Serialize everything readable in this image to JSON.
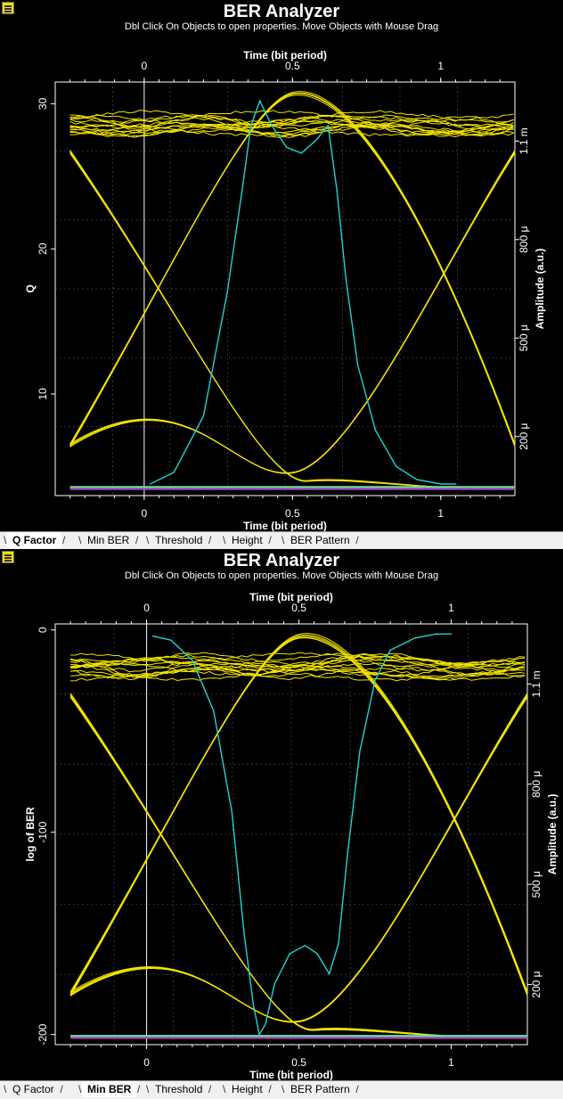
{
  "colors": {
    "eye": "#f2e400",
    "q_curve": "#1fd3d3",
    "background": "#000000",
    "text": "#ffffff",
    "grid": "#333333",
    "tab_bg": "#f0f0f0"
  },
  "panels": [
    {
      "title": "BER Analyzer",
      "subtitle": "Dbl Click On Objects to open properties.  Move Objects with Mouse Drag",
      "icon": "analyzer-icon",
      "chart_data": {
        "type": "line",
        "top_axis_label": "Time (bit period)",
        "xlabel": "Time (bit period)",
        "ylabel": "Q",
        "y2label": "Amplitude (a.u.)",
        "xlim": [
          -0.3,
          1.25
        ],
        "ylim": [
          3,
          31.5
        ],
        "x_ticks": [
          "0",
          "0.5",
          "1"
        ],
        "y_ticks": [
          "10",
          "20",
          "30"
        ],
        "y2_ticks": [
          "200 μ",
          "500 μ",
          "800 μ",
          "1.1 m"
        ],
        "grid": true,
        "series": [
          {
            "curve": "q_factor",
            "x": [
              0.02,
              0.1,
              0.2,
              0.28,
              0.33,
              0.36,
              0.39,
              0.43,
              0.48,
              0.53,
              0.58,
              0.62,
              0.65,
              0.68,
              0.72,
              0.78,
              0.85,
              0.92,
              1.0,
              1.05
            ],
            "values": [
              3.8,
              4.6,
              8.5,
              17,
              24,
              28.5,
              30.2,
              28.5,
              27,
              26.6,
              27.5,
              28.5,
              24,
              18,
              12,
              7.5,
              5,
              4.1,
              3.8,
              3.8
            ]
          }
        ]
      },
      "tabs": [
        {
          "label": "Q Factor",
          "active": true
        },
        {
          "label": "Min BER",
          "active": false
        },
        {
          "label": "Threshold",
          "active": false
        },
        {
          "label": "Height",
          "active": false
        },
        {
          "label": "BER Pattern",
          "active": false
        }
      ]
    },
    {
      "title": "BER Analyzer",
      "subtitle": "Dbl Click On Objects to open properties.  Move Objects with Mouse Drag",
      "icon": "analyzer-icon",
      "chart_data": {
        "type": "line",
        "top_axis_label": "Time (bit period)",
        "xlabel": "Time (bit period)",
        "ylabel": "log of BER",
        "y2label": "Amplitude (a.u.)",
        "xlim": [
          -0.3,
          1.25
        ],
        "ylim": [
          -205,
          3
        ],
        "x_ticks": [
          "0",
          "0.5",
          "1"
        ],
        "y_ticks": [
          "0",
          "-100",
          "-200"
        ],
        "y2_ticks": [
          "200 μ",
          "500 μ",
          "800 μ",
          "1.1 m"
        ],
        "grid": true,
        "series": [
          {
            "curve": "min_ber",
            "x": [
              0.02,
              0.08,
              0.15,
              0.22,
              0.28,
              0.32,
              0.35,
              0.37,
              0.39,
              0.42,
              0.47,
              0.52,
              0.56,
              0.6,
              0.63,
              0.66,
              0.7,
              0.75,
              0.8,
              0.88,
              0.95,
              1.0
            ],
            "values": [
              -3,
              -5,
              -15,
              -40,
              -90,
              -150,
              -185,
              -200,
              -195,
              -175,
              -160,
              -156,
              -160,
              -170,
              -155,
              -110,
              -60,
              -25,
              -10,
              -4,
              -2,
              -2
            ]
          }
        ]
      },
      "tabs": [
        {
          "label": "Q Factor",
          "active": false
        },
        {
          "label": "Min BER",
          "active": true
        },
        {
          "label": "Threshold",
          "active": false
        },
        {
          "label": "Height",
          "active": false
        },
        {
          "label": "BER Pattern",
          "active": false
        }
      ]
    }
  ]
}
